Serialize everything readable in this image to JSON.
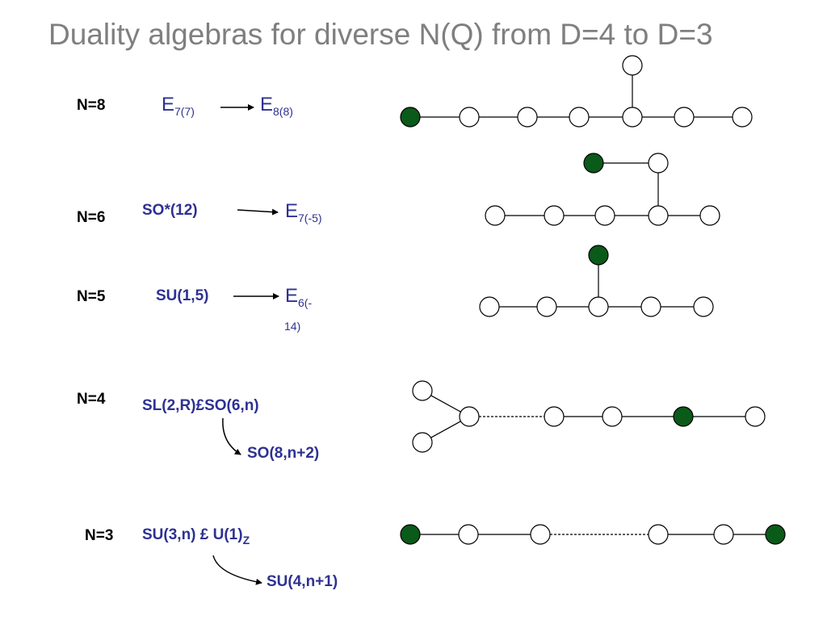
{
  "title": "Duality algebras for diverse N(Q) from D=4 to D=3",
  "colors": {
    "title": "#7f7f7f",
    "group_text": "#2e3192",
    "filled_node": "#0a5a1a",
    "node_stroke": "#000000"
  },
  "rows": [
    {
      "n": "N=8",
      "from": {
        "base": "E",
        "sub": "7(7)"
      },
      "to": {
        "base": "E",
        "sub": "8(8)"
      }
    },
    {
      "n": "N=6",
      "from": {
        "text": "SO*(12)"
      },
      "to": {
        "base": "E",
        "sub": "7(-5)"
      }
    },
    {
      "n": "N=5",
      "from": {
        "text": "SU(1,5)"
      },
      "to": {
        "base": "E",
        "sub": "6(-",
        "sub2": "14)"
      }
    },
    {
      "n": "N=4",
      "from": {
        "text": "SL(2,R)£SO(6,n)"
      },
      "to": {
        "text": "SO(8,n+2)"
      }
    },
    {
      "n": "N=3",
      "from": {
        "text": "SU(3,n) £ U(1)",
        "sub": "Z"
      },
      "to": {
        "text": "SU(4,n+1)"
      }
    }
  ],
  "dynkin_diagrams": [
    {
      "row": "N=8",
      "nodes": [
        {
          "id": "a",
          "filled": true
        },
        {
          "id": "b",
          "filled": false
        },
        {
          "id": "c",
          "filled": false
        },
        {
          "id": "d",
          "filled": false
        },
        {
          "id": "e",
          "filled": false
        },
        {
          "id": "f",
          "filled": false
        },
        {
          "id": "g",
          "filled": false
        },
        {
          "id": "h",
          "filled": false
        }
      ],
      "edges": [
        [
          "a",
          "b"
        ],
        [
          "b",
          "c"
        ],
        [
          "c",
          "d"
        ],
        [
          "d",
          "e"
        ],
        [
          "e",
          "f"
        ],
        [
          "f",
          "g"
        ],
        [
          "e",
          "h"
        ]
      ]
    },
    {
      "row": "N=6",
      "nodes": [
        {
          "id": "a",
          "filled": false
        },
        {
          "id": "b",
          "filled": false
        },
        {
          "id": "c",
          "filled": false
        },
        {
          "id": "d",
          "filled": false
        },
        {
          "id": "e",
          "filled": false
        },
        {
          "id": "f",
          "filled": false
        },
        {
          "id": "g",
          "filled": true
        }
      ],
      "edges": [
        [
          "a",
          "b"
        ],
        [
          "b",
          "c"
        ],
        [
          "c",
          "d"
        ],
        [
          "d",
          "e"
        ],
        [
          "d",
          "f"
        ],
        [
          "f",
          "g"
        ]
      ]
    },
    {
      "row": "N=5",
      "nodes": [
        {
          "id": "a",
          "filled": false
        },
        {
          "id": "b",
          "filled": false
        },
        {
          "id": "c",
          "filled": false
        },
        {
          "id": "d",
          "filled": false
        },
        {
          "id": "e",
          "filled": false
        },
        {
          "id": "f",
          "filled": true
        }
      ],
      "edges": [
        [
          "a",
          "b"
        ],
        [
          "b",
          "c"
        ],
        [
          "c",
          "d"
        ],
        [
          "d",
          "e"
        ],
        [
          "c",
          "f"
        ]
      ]
    },
    {
      "row": "N=4",
      "nodes": [
        {
          "id": "a",
          "filled": false
        },
        {
          "id": "b",
          "filled": false
        },
        {
          "id": "c",
          "filled": false
        },
        {
          "id": "d",
          "filled": false
        },
        {
          "id": "e",
          "filled": false
        },
        {
          "id": "f",
          "filled": true
        },
        {
          "id": "g",
          "filled": false
        }
      ],
      "edges": [
        [
          "a",
          "c"
        ],
        [
          "b",
          "c"
        ],
        [
          "c",
          "d",
          "dashed"
        ],
        [
          "d",
          "e"
        ],
        [
          "e",
          "f"
        ],
        [
          "f",
          "g"
        ]
      ]
    },
    {
      "row": "N=3",
      "nodes": [
        {
          "id": "a",
          "filled": true
        },
        {
          "id": "b",
          "filled": false
        },
        {
          "id": "c",
          "filled": false
        },
        {
          "id": "d",
          "filled": false
        },
        {
          "id": "e",
          "filled": false
        },
        {
          "id": "f",
          "filled": true
        }
      ],
      "edges": [
        [
          "a",
          "b"
        ],
        [
          "b",
          "c"
        ],
        [
          "c",
          "d",
          "dashed"
        ],
        [
          "d",
          "e"
        ],
        [
          "e",
          "f"
        ]
      ]
    }
  ]
}
